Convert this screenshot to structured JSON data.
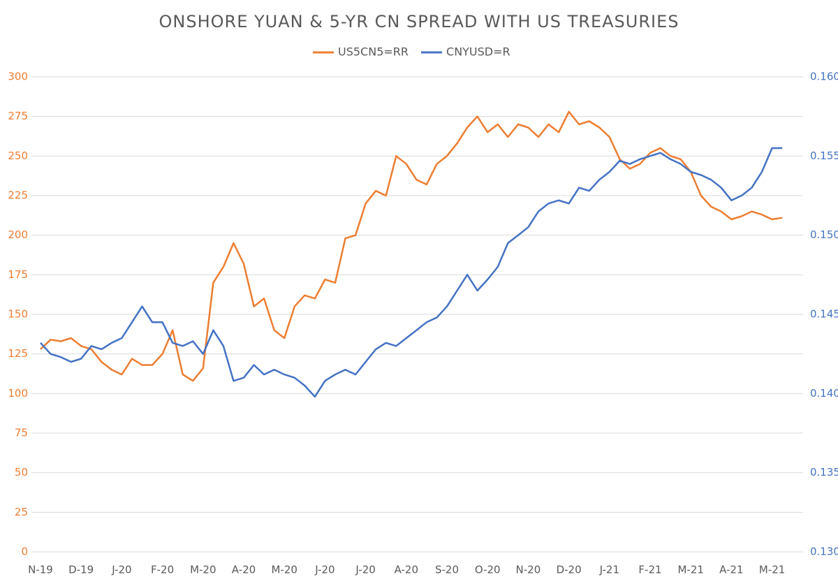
{
  "chart_data": {
    "type": "line",
    "title": "ONSHORE YUAN & 5-YR CN SPREAD WITH US TREASURIES",
    "categories": [
      "N-19",
      null,
      null,
      null,
      "D-19",
      null,
      null,
      null,
      "J-20",
      null,
      null,
      null,
      "F-20",
      null,
      null,
      null,
      "M-20",
      null,
      null,
      null,
      "A-20",
      null,
      null,
      null,
      "M-20",
      null,
      null,
      null,
      "J-20",
      null,
      null,
      null,
      "J-20",
      null,
      null,
      null,
      "A-20",
      null,
      null,
      null,
      "S-20",
      null,
      null,
      null,
      "O-20",
      null,
      null,
      null,
      "N-20",
      null,
      null,
      null,
      "D-20",
      null,
      null,
      null,
      "J-21",
      null,
      null,
      null,
      "F-21",
      null,
      null,
      null,
      "M-21",
      null,
      null,
      null,
      "A-21",
      null,
      null,
      null,
      "M-21",
      null
    ],
    "series": [
      {
        "name": "US5CN5=RR",
        "color": "#ed7d31",
        "axis": "y",
        "values": [
          128,
          134,
          133,
          135,
          130,
          128,
          120,
          115,
          112,
          122,
          118,
          118,
          125,
          140,
          112,
          108,
          116,
          170,
          180,
          195,
          182,
          155,
          160,
          140,
          135,
          155,
          162,
          160,
          172,
          170,
          198,
          200,
          220,
          228,
          225,
          250,
          245,
          235,
          232,
          245,
          250,
          258,
          268,
          275,
          265,
          270,
          262,
          270,
          268,
          262,
          270,
          265,
          278,
          270,
          272,
          268,
          262,
          248,
          242,
          245,
          252,
          255,
          250,
          248,
          240,
          225,
          218,
          215,
          210,
          212,
          215,
          213,
          210,
          211
        ]
      },
      {
        "name": "CNYUSD=R",
        "color": "#4472c4",
        "axis": "y2",
        "values": [
          0.1432,
          0.1425,
          0.1423,
          0.142,
          0.1422,
          0.143,
          0.1428,
          0.1432,
          0.1435,
          0.1445,
          0.1455,
          0.1445,
          0.1445,
          0.1432,
          0.143,
          0.1433,
          0.1425,
          0.144,
          0.143,
          0.1408,
          0.141,
          0.1418,
          0.1412,
          0.1415,
          0.1412,
          0.141,
          0.1405,
          0.1398,
          0.1408,
          0.1412,
          0.1415,
          0.1412,
          0.142,
          0.1428,
          0.1432,
          0.143,
          0.1435,
          0.144,
          0.1445,
          0.1448,
          0.1455,
          0.1465,
          0.1475,
          0.1465,
          0.1472,
          0.148,
          0.1495,
          0.15,
          0.1505,
          0.1515,
          0.152,
          0.1522,
          0.152,
          0.153,
          0.1528,
          0.1535,
          0.154,
          0.1547,
          0.1545,
          0.1548,
          0.155,
          0.1552,
          0.1548,
          0.1545,
          0.154,
          0.1538,
          0.1535,
          0.153,
          0.1522,
          0.1525,
          0.153,
          0.154,
          0.1555,
          0.1555
        ]
      }
    ],
    "ylim": [
      0,
      300
    ],
    "yticks": [
      0,
      25,
      50,
      75,
      100,
      125,
      150,
      175,
      200,
      225,
      250,
      275,
      300
    ],
    "y2lim": [
      0.13,
      0.16
    ],
    "y2ticks": [
      {
        "value": 0.13,
        "label": "0.1300"
      },
      {
        "value": 0.135,
        "label": "0.1350"
      },
      {
        "value": 0.14,
        "label": "0.1400"
      },
      {
        "value": 0.145,
        "label": "0.1450"
      },
      {
        "value": 0.15,
        "label": "0.1500"
      },
      {
        "value": 0.155,
        "label": "0.1550"
      },
      {
        "value": 0.16,
        "label": "0.1600"
      }
    ],
    "grid": true,
    "legend": "top"
  }
}
